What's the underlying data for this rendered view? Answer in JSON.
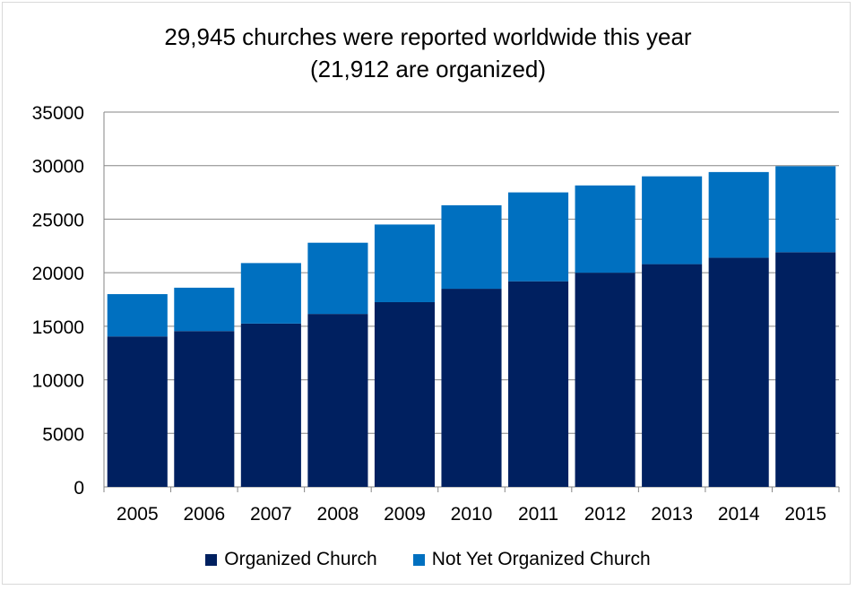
{
  "chart_data": {
    "type": "bar",
    "stacked": true,
    "title_line1": "29,945 churches were reported worldwide this year",
    "title_line2": "(21,912 are organized)",
    "categories": [
      "2005",
      "2006",
      "2007",
      "2008",
      "2009",
      "2010",
      "2011",
      "2012",
      "2013",
      "2014",
      "2015"
    ],
    "series": [
      {
        "name": "Organized Church",
        "color": "#002060",
        "values": [
          14050,
          14550,
          15250,
          16150,
          17250,
          18500,
          19200,
          20000,
          20800,
          21400,
          21912
        ]
      },
      {
        "name": "Not Yet Organized Church",
        "color": "#0070c0",
        "values": [
          3950,
          4050,
          5650,
          6650,
          7250,
          7800,
          8300,
          8150,
          8200,
          8000,
          8033
        ]
      }
    ],
    "ylim": [
      0,
      35000
    ],
    "yticks": [
      "0",
      "5000",
      "10000",
      "15000",
      "20000",
      "25000",
      "30000",
      "35000"
    ],
    "grid": true,
    "legend_position": "bottom"
  }
}
